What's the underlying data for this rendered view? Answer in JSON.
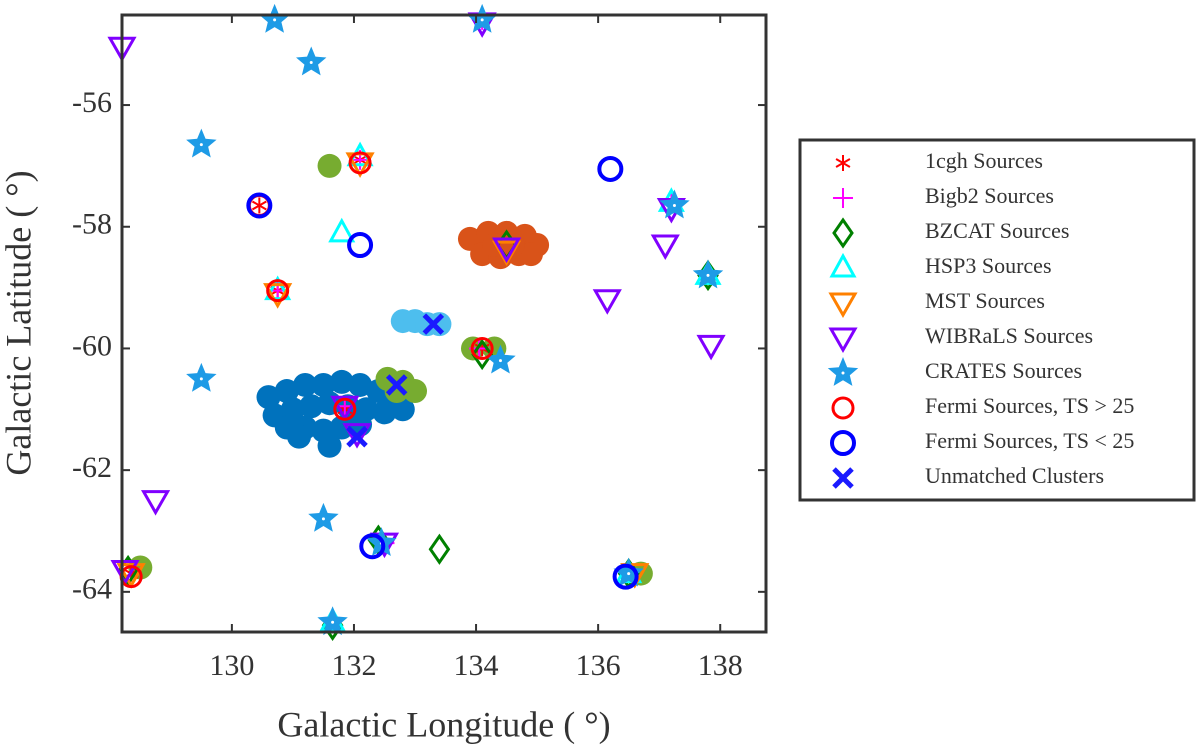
{
  "chart_data": {
    "type": "scatter",
    "xlabel": "Galactic Longitude ( °)",
    "ylabel": "Galactic Latitude ( °)",
    "xlim": [
      128.2,
      138.75
    ],
    "ylim": [
      -64.66,
      -54.52
    ],
    "xticks": [
      130,
      132,
      134,
      136,
      138
    ],
    "yticks": [
      -56,
      -58,
      -60,
      -62,
      -64
    ],
    "background_clusters": [
      {
        "color": "#0072bd",
        "x": [
          130.6,
          130.9,
          131.2,
          131.5,
          131.8,
          132.1,
          132.4,
          132.7,
          130.7,
          131.0,
          131.3,
          131.6,
          131.9,
          132.2,
          132.5,
          130.9,
          131.2,
          131.5,
          131.8,
          132.1,
          131.6,
          132.8,
          131.1
        ],
        "y": [
          -60.8,
          -60.7,
          -60.6,
          -60.6,
          -60.55,
          -60.6,
          -60.7,
          -60.8,
          -61.1,
          -61.0,
          -60.95,
          -60.9,
          -60.95,
          -61.0,
          -61.05,
          -61.3,
          -61.3,
          -61.35,
          -61.3,
          -61.25,
          -61.6,
          -61.0,
          -61.45
        ]
      },
      {
        "color": "#d95319",
        "x": [
          133.9,
          134.2,
          134.5,
          134.8,
          135.0,
          134.1,
          134.4,
          134.7,
          134.9,
          134.3,
          134.6
        ],
        "y": [
          -58.2,
          -58.1,
          -58.1,
          -58.15,
          -58.3,
          -58.45,
          -58.5,
          -58.45,
          -58.45,
          -58.3,
          -58.3
        ]
      },
      {
        "color": "#4dbeee",
        "x": [
          132.8,
          133.0,
          133.2,
          133.4
        ],
        "y": [
          -59.55,
          -59.55,
          -59.6,
          -59.6
        ]
      },
      {
        "color": "#77ac30",
        "x": [
          132.55,
          132.8,
          133.0,
          132.7,
          133.95,
          134.3,
          128.5,
          136.7,
          131.6
        ],
        "y": [
          -60.5,
          -60.55,
          -60.7,
          -60.7,
          -60.0,
          -60.0,
          -63.6,
          -63.7,
          -57.0
        ]
      }
    ],
    "series": [
      {
        "name": "1cgh Sources",
        "color": "#ff0000",
        "marker": "asterisk",
        "x": [
          132.1,
          130.45,
          130.75,
          131.85,
          134.1,
          128.35
        ],
        "y": [
          -56.9,
          -57.65,
          -59.05,
          -61.0,
          -60.0,
          -63.7
        ]
      },
      {
        "name": "Bigb2 Sources",
        "color": "#ff00ff",
        "marker": "plus",
        "x": [
          132.1,
          130.75,
          131.85,
          134.05,
          137.2,
          132.5,
          134.1
        ],
        "y": [
          -56.9,
          -59.05,
          -60.95,
          -60.0,
          -57.6,
          -63.2,
          -54.6
        ]
      },
      {
        "name": "BZCAT Sources",
        "color": "#008000",
        "marker": "diamond",
        "x": [
          134.1,
          134.5,
          137.8,
          133.4,
          131.65,
          132.4,
          136.5,
          128.3
        ],
        "y": [
          -60.1,
          -58.3,
          -58.8,
          -63.3,
          -64.55,
          -63.15,
          -63.7,
          -63.65
        ]
      },
      {
        "name": "HSP3 Sources",
        "color": "#00ffff",
        "marker": "triangle-up",
        "x": [
          131.8,
          132.1,
          130.75,
          136.5,
          137.2,
          137.8,
          131.65
        ],
        "y": [
          -58.1,
          -56.85,
          -59.05,
          -63.7,
          -57.6,
          -58.8,
          -64.5
        ]
      },
      {
        "name": "MST Sources",
        "color": "#ff8000",
        "marker": "triangle-down",
        "x": [
          132.1,
          130.75,
          134.5,
          128.35,
          136.6
        ],
        "y": [
          -56.95,
          -59.1,
          -58.4,
          -63.7,
          -63.7
        ]
      },
      {
        "name": "WIBRaLS Sources",
        "color": "#8000ff",
        "marker": "triangle-down",
        "x": [
          128.2,
          134.1,
          136.15,
          137.1,
          137.85,
          128.75,
          134.5,
          137.2,
          132.05,
          128.25,
          132.5,
          131.85
        ],
        "y": [
          -55.05,
          -54.65,
          -59.2,
          -58.3,
          -59.95,
          -62.5,
          -58.35,
          -57.7,
          -61.4,
          -63.65,
          -63.2,
          -60.95
        ]
      },
      {
        "name": "CRATES Sources",
        "color": "#1e9be6",
        "marker": "star",
        "x": [
          130.7,
          134.1,
          131.3,
          129.5,
          129.5,
          131.5,
          131.65,
          134.4,
          137.25,
          137.8,
          132.45,
          136.5
        ],
        "y": [
          -54.6,
          -54.6,
          -55.3,
          -56.65,
          -60.5,
          -62.8,
          -64.5,
          -60.2,
          -57.65,
          -58.8,
          -63.2,
          -63.7
        ]
      },
      {
        "name": "Fermi Sources, TS > 25",
        "color": "#ff0000",
        "marker": "circle",
        "x": [
          132.1,
          130.45,
          130.75,
          131.85,
          134.1,
          128.35
        ],
        "y": [
          -56.95,
          -57.65,
          -59.05,
          -61.0,
          -60.0,
          -63.75
        ]
      },
      {
        "name": "Fermi Sources, TS < 25",
        "color": "#0000ff",
        "marker": "circle-bold",
        "x": [
          136.2,
          130.45,
          132.1,
          132.3,
          136.45
        ],
        "y": [
          -57.05,
          -57.65,
          -58.3,
          -63.25,
          -63.75
        ]
      },
      {
        "name": "Unmatched Clusters",
        "color": "#1a1aff",
        "marker": "x",
        "x": [
          133.3,
          132.7,
          132.05
        ],
        "y": [
          -59.6,
          -60.6,
          -61.45
        ]
      }
    ]
  }
}
